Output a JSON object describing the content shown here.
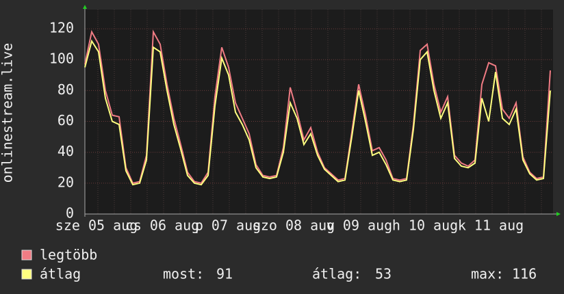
{
  "chart_data": {
    "type": "line",
    "y_label": "onlinestream.live",
    "ylim": [
      0,
      130
    ],
    "yticks": [
      0,
      20,
      40,
      60,
      80,
      100,
      120
    ],
    "grid": true,
    "x_labels": [
      "sze 05 aug",
      "cs 06 aug",
      "p 07 aug",
      "szo 08 aug",
      "v 09 aug",
      "h 10 aug",
      "k 11 aug"
    ],
    "series": [
      {
        "name": "legtöbb",
        "color": "#f07c84",
        "values": [
          97,
          118,
          110,
          80,
          64,
          63,
          30,
          20,
          21,
          38,
          118,
          110,
          84,
          62,
          45,
          27,
          21,
          20,
          27,
          76,
          108,
          95,
          72,
          62,
          52,
          32,
          25,
          24,
          25,
          43,
          82,
          66,
          48,
          56,
          40,
          30,
          26,
          22,
          23,
          53,
          84,
          64,
          41,
          43,
          35,
          23,
          22,
          23,
          58,
          106,
          110,
          84,
          66,
          76,
          38,
          33,
          31,
          35,
          84,
          98,
          96,
          68,
          62,
          72,
          37,
          27,
          23,
          24,
          93
        ]
      },
      {
        "name": "átlag",
        "color": "#ffff80",
        "values": [
          95,
          112,
          105,
          75,
          60,
          58,
          28,
          19,
          20,
          35,
          108,
          105,
          80,
          58,
          42,
          25,
          20,
          19,
          25,
          70,
          101,
          90,
          66,
          58,
          48,
          30,
          24,
          23,
          24,
          40,
          72,
          62,
          45,
          52,
          38,
          29,
          25,
          21,
          22,
          50,
          80,
          60,
          38,
          40,
          32,
          22,
          21,
          22,
          55,
          100,
          105,
          80,
          62,
          72,
          36,
          31,
          30,
          33,
          75,
          60,
          92,
          62,
          58,
          68,
          35,
          26,
          22,
          23,
          80
        ]
      }
    ],
    "stats": [
      {
        "label": "most:",
        "value": 91
      },
      {
        "label": "átlag:",
        "value": 53
      },
      {
        "label": "max:",
        "value": 116
      }
    ]
  }
}
